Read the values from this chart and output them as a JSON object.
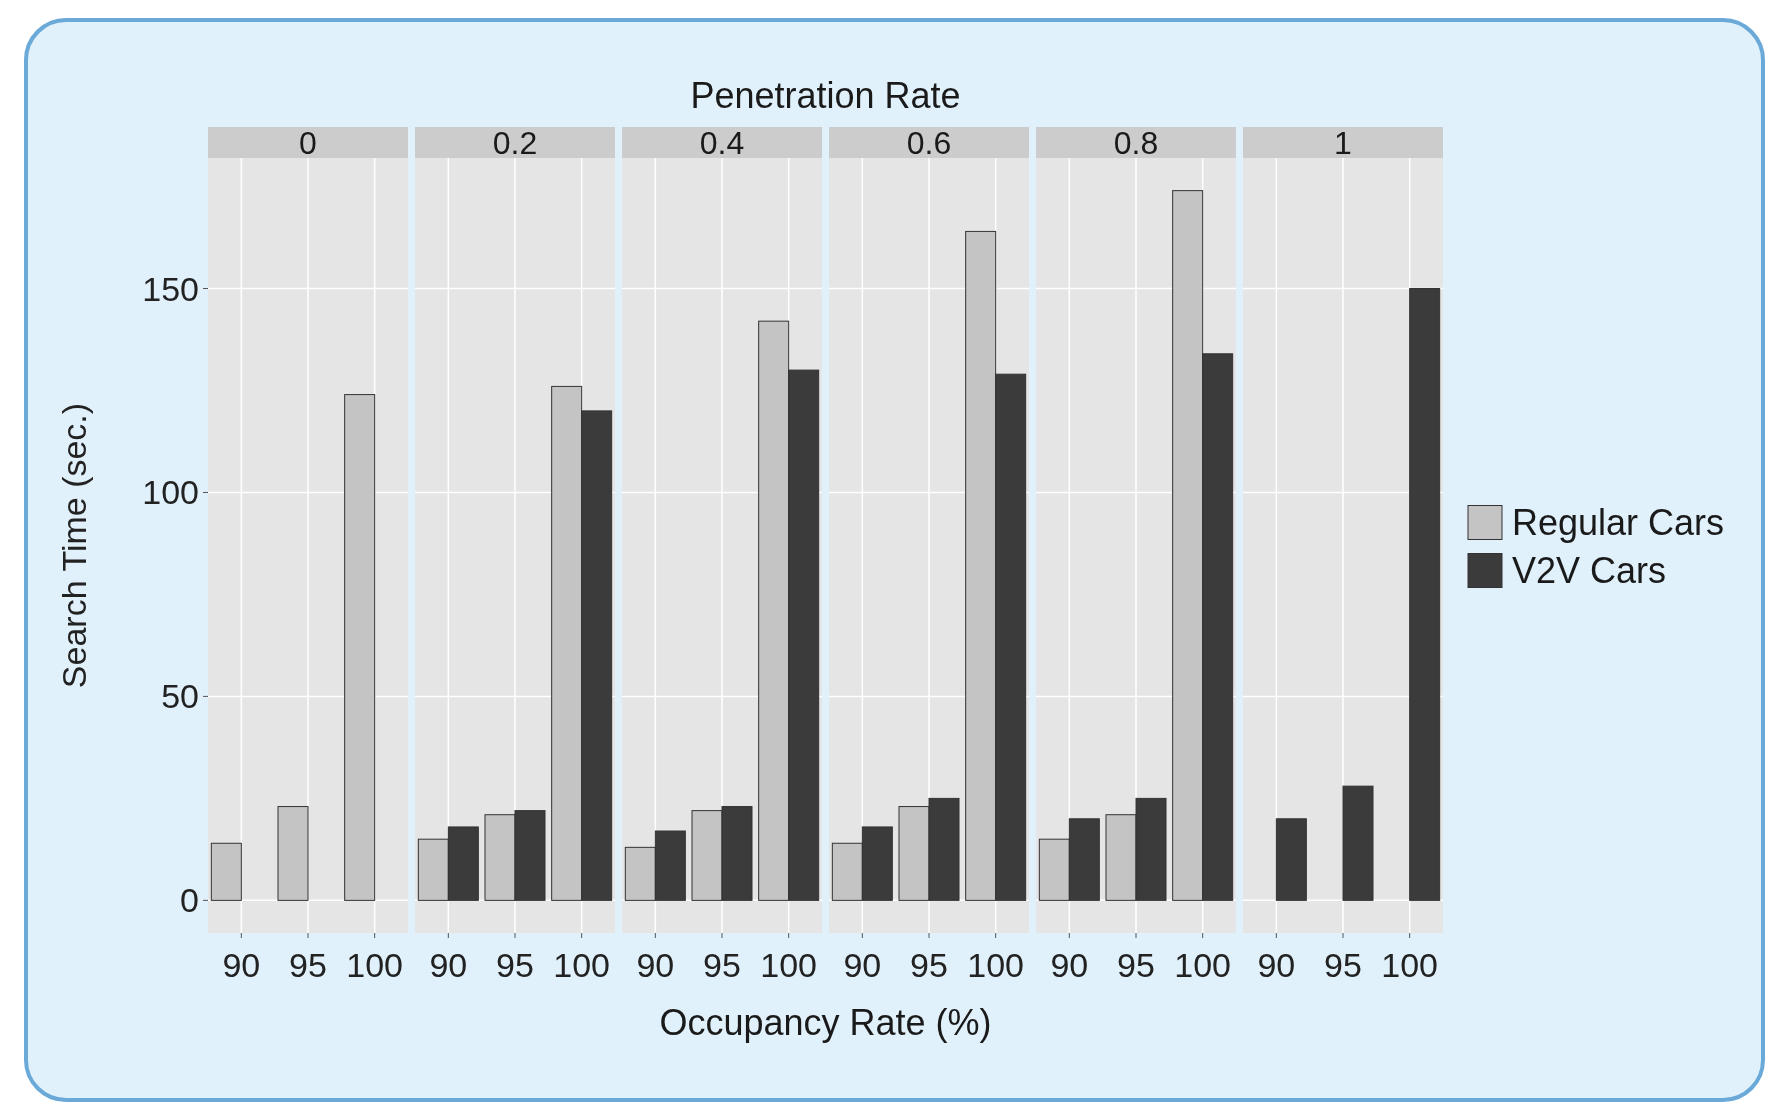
{
  "chart_data": [
    {
      "type": "bar",
      "title": "0",
      "ylabel": "Search Time (sec.)",
      "annotations": [
        "Penetration Rate"
      ],
      "categories": [
        "90",
        "95",
        "100"
      ],
      "series": [
        {
          "name": "Regular Cars",
          "color": "#c4c4c4",
          "values": [
            14,
            23,
            124
          ]
        },
        {
          "name": "V2V Cars",
          "color": "#3b3b3b",
          "values": [
            null,
            null,
            null
          ]
        }
      ],
      "ylim": [
        -8,
        182
      ],
      "yticks": [
        0,
        50,
        100,
        150
      ],
      "grid": true,
      "legend": "right"
    },
    {
      "type": "bar",
      "title": "0.2",
      "categories": [
        "90",
        "95",
        "100"
      ],
      "series": [
        {
          "color": "#c4c4c4",
          "values": [
            15,
            21,
            126
          ]
        },
        {
          "color": "#3b3b3b",
          "values": [
            18,
            22,
            120
          ]
        }
      ],
      "ylim": [
        -8,
        182
      ],
      "yticks": [
        0,
        50,
        100,
        150
      ],
      "grid": true,
      "tick_labels": "x"
    },
    {
      "type": "bar",
      "title": "0.4",
      "categories": [
        "90",
        "95",
        "100"
      ],
      "series": [
        {
          "color": "#c4c4c4",
          "values": [
            13,
            22,
            142
          ]
        },
        {
          "color": "#3b3b3b",
          "values": [
            17,
            23,
            130
          ]
        }
      ],
      "ylim": [
        -8,
        182
      ],
      "yticks": [
        0,
        50,
        100,
        150
      ],
      "grid": true,
      "tick_labels": "x"
    },
    {
      "type": "bar",
      "title": "0.6",
      "xlabel": "Occupancy Rate (%)",
      "categories": [
        "90",
        "95",
        "100"
      ],
      "series": [
        {
          "color": "#c4c4c4",
          "values": [
            14,
            23,
            164
          ]
        },
        {
          "color": "#3b3b3b",
          "values": [
            18,
            25,
            129
          ]
        }
      ],
      "ylim": [
        -8,
        182
      ],
      "yticks": [
        0,
        50,
        100,
        150
      ],
      "grid": true,
      "tick_labels": "x"
    },
    {
      "type": "bar",
      "title": "0.8",
      "categories": [
        "90",
        "95",
        "100"
      ],
      "series": [
        {
          "color": "#c4c4c4",
          "values": [
            15,
            21,
            174
          ]
        },
        {
          "color": "#3b3b3b",
          "values": [
            20,
            25,
            134
          ]
        }
      ],
      "ylim": [
        -8,
        182
      ],
      "yticks": [
        0,
        50,
        100,
        150
      ],
      "grid": true,
      "tick_labels": "x"
    },
    {
      "type": "bar",
      "title": "1",
      "categories": [
        "90",
        "95",
        "100"
      ],
      "series": [
        {
          "values": [
            null,
            null,
            null
          ]
        },
        {
          "color": "#3b3b3b",
          "values": [
            20,
            28,
            150
          ]
        }
      ],
      "ylim": [
        -8,
        182
      ],
      "yticks": [
        0,
        50,
        100,
        150
      ],
      "grid": true,
      "tick_labels": "x"
    }
  ]
}
